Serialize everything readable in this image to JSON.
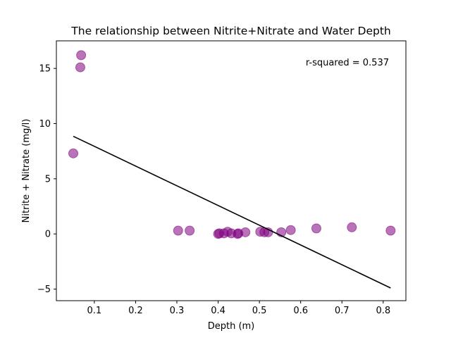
{
  "chart_data": {
    "type": "scatter",
    "title": "The relationship between Nitrite+Nitrate and Water Depth",
    "xlabel": "Depth (m)",
    "ylabel": "Nitrite + Nitrate (mg/l)",
    "xlim": [
      0.008,
      0.855
    ],
    "ylim": [
      -6.05,
      17.5
    ],
    "xticks": [
      0.1,
      0.2,
      0.3,
      0.4,
      0.5,
      0.6,
      0.7,
      0.8
    ],
    "xtick_labels": [
      "0.1",
      "0.2",
      "0.3",
      "0.4",
      "0.5",
      "0.6",
      "0.7",
      "0.8"
    ],
    "yticks": [
      -5,
      0,
      5,
      10,
      15
    ],
    "ytick_labels": [
      "−5",
      "0",
      "5",
      "10",
      "15"
    ],
    "grid": false,
    "annotation": "r-squared = 0.537",
    "point_color": "#800080",
    "line_color": "#000000",
    "points": [
      {
        "x": 0.068,
        "y": 16.2
      },
      {
        "x": 0.066,
        "y": 15.1
      },
      {
        "x": 0.049,
        "y": 7.3
      },
      {
        "x": 0.303,
        "y": 0.3
      },
      {
        "x": 0.331,
        "y": 0.3
      },
      {
        "x": 0.4,
        "y": 0.0
      },
      {
        "x": 0.403,
        "y": 0.05
      },
      {
        "x": 0.414,
        "y": 0.05
      },
      {
        "x": 0.423,
        "y": 0.2
      },
      {
        "x": 0.432,
        "y": 0.05
      },
      {
        "x": 0.447,
        "y": 0.0
      },
      {
        "x": 0.449,
        "y": 0.05
      },
      {
        "x": 0.466,
        "y": 0.15
      },
      {
        "x": 0.502,
        "y": 0.2
      },
      {
        "x": 0.512,
        "y": 0.15
      },
      {
        "x": 0.521,
        "y": 0.15
      },
      {
        "x": 0.553,
        "y": 0.15
      },
      {
        "x": 0.576,
        "y": 0.35
      },
      {
        "x": 0.638,
        "y": 0.5
      },
      {
        "x": 0.724,
        "y": 0.6
      },
      {
        "x": 0.818,
        "y": 0.3
      }
    ],
    "fit_line": {
      "x": [
        0.049,
        0.818
      ],
      "y": [
        8.85,
        -4.9
      ]
    }
  }
}
